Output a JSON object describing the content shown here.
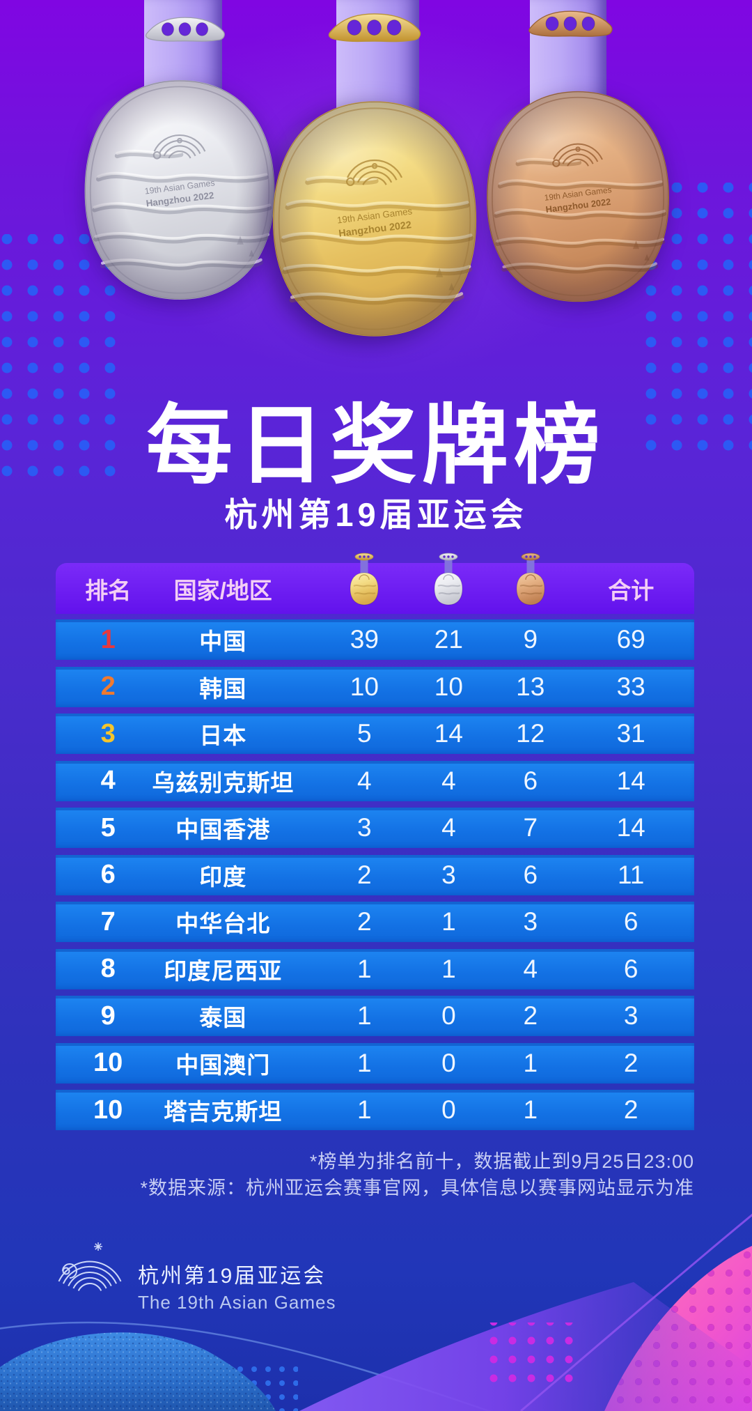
{
  "poster": {
    "title": "每日奖牌榜",
    "subtitle": "杭州第19届亚运会",
    "medal_engraving": {
      "line1": "19th Asian Games",
      "line2": "Hangzhou 2022"
    }
  },
  "table": {
    "headers": {
      "rank": "排名",
      "region": "国家/地区",
      "total": "合计"
    },
    "medal_icons": [
      "gold-medal-icon",
      "silver-medal-icon",
      "bronze-medal-icon"
    ],
    "rows": [
      {
        "rank": "1",
        "region": "中国",
        "gold": 39,
        "silver": 21,
        "bronze": 9,
        "total": 69,
        "rank_color": "#E8383D"
      },
      {
        "rank": "2",
        "region": "韩国",
        "gold": 10,
        "silver": 10,
        "bronze": 13,
        "total": 33,
        "rank_color": "#F07A2F"
      },
      {
        "rank": "3",
        "region": "日本",
        "gold": 5,
        "silver": 14,
        "bronze": 12,
        "total": 31,
        "rank_color": "#F5C52B"
      },
      {
        "rank": "4",
        "region": "乌兹别克斯坦",
        "gold": 4,
        "silver": 4,
        "bronze": 6,
        "total": 14,
        "rank_color": "#FFFFFF"
      },
      {
        "rank": "5",
        "region": "中国香港",
        "gold": 3,
        "silver": 4,
        "bronze": 7,
        "total": 14,
        "rank_color": "#FFFFFF"
      },
      {
        "rank": "6",
        "region": "印度",
        "gold": 2,
        "silver": 3,
        "bronze": 6,
        "total": 11,
        "rank_color": "#FFFFFF"
      },
      {
        "rank": "7",
        "region": "中华台北",
        "gold": 2,
        "silver": 1,
        "bronze": 3,
        "total": 6,
        "rank_color": "#FFFFFF"
      },
      {
        "rank": "8",
        "region": "印度尼西亚",
        "gold": 1,
        "silver": 1,
        "bronze": 4,
        "total": 6,
        "rank_color": "#FFFFFF"
      },
      {
        "rank": "9",
        "region": "泰国",
        "gold": 1,
        "silver": 0,
        "bronze": 2,
        "total": 3,
        "rank_color": "#FFFFFF"
      },
      {
        "rank": "10",
        "region": "中国澳门",
        "gold": 1,
        "silver": 0,
        "bronze": 1,
        "total": 2,
        "rank_color": "#FFFFFF"
      },
      {
        "rank": "10",
        "region": "塔吉克斯坦",
        "gold": 1,
        "silver": 0,
        "bronze": 1,
        "total": 2,
        "rank_color": "#FFFFFF"
      }
    ]
  },
  "footnotes": [
    "*榜单为排名前十，数据截止到9月25日23:00",
    "*数据来源：杭州亚运会赛事官网，具体信息以赛事网站显示为准"
  ],
  "footer": {
    "title": "杭州第19届亚运会",
    "subtitle": "The 19th Asian Games"
  },
  "colors": {
    "background_top": "#8006E2",
    "background_bottom": "#1D30AC",
    "header_purple": "#6B1BF4",
    "row_blue": "#1474E6",
    "rank1": "#E8383D",
    "rank2": "#F07A2F",
    "rank3": "#F5C52B",
    "gold": "#E9C65F",
    "silver": "#DCDDE3",
    "bronze": "#D2976B",
    "pink_accent": "#F655C4",
    "ribbon_lavender": "#BCA9F6"
  },
  "chart_data": {
    "type": "table",
    "title": "每日奖牌榜",
    "subtitle": "杭州第19届亚运会",
    "columns": [
      "排名",
      "国家/地区",
      "金牌",
      "银牌",
      "铜牌",
      "合计"
    ],
    "rows": [
      [
        1,
        "中国",
        39,
        21,
        9,
        69
      ],
      [
        2,
        "韩国",
        10,
        10,
        13,
        33
      ],
      [
        3,
        "日本",
        5,
        14,
        12,
        31
      ],
      [
        4,
        "乌兹别克斯坦",
        4,
        4,
        6,
        14
      ],
      [
        5,
        "中国香港",
        3,
        4,
        7,
        14
      ],
      [
        6,
        "印度",
        2,
        3,
        6,
        11
      ],
      [
        7,
        "中华台北",
        2,
        1,
        3,
        6
      ],
      [
        8,
        "印度尼西亚",
        1,
        1,
        4,
        6
      ],
      [
        9,
        "泰国",
        1,
        0,
        2,
        3
      ],
      [
        10,
        "中国澳门",
        1,
        0,
        1,
        2
      ],
      [
        10,
        "塔吉克斯坦",
        1,
        0,
        1,
        2
      ]
    ],
    "notes": [
      "*榜单为排名前十，数据截止到9月25日23:00",
      "*数据来源：杭州亚运会赛事官网，具体信息以赛事网站显示为准"
    ]
  }
}
